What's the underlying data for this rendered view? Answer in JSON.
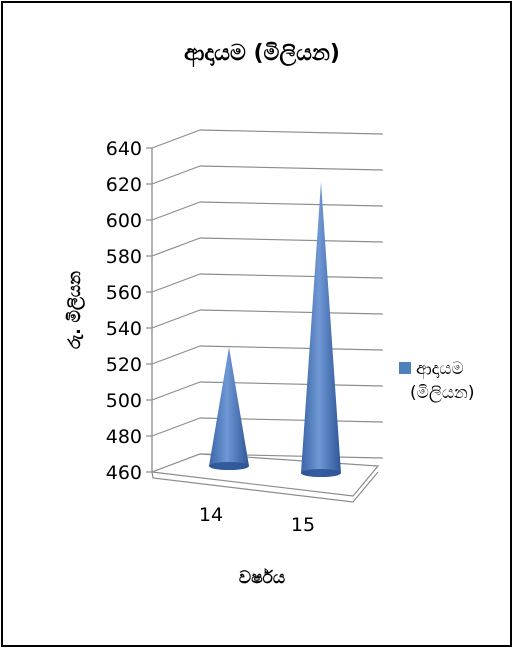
{
  "chart_data": {
    "type": "bar",
    "bar_shape": "cone-3d",
    "title": "ආදායම (මිලියන)",
    "xlabel": "වර්ෂය",
    "ylabel": "රු. මිලියන",
    "categories": [
      "14",
      "15"
    ],
    "series": [
      {
        "name": "ආදායම (මිලියන)",
        "values": [
          527,
          620
        ],
        "color": "#4f81bd"
      }
    ],
    "ylim": [
      460,
      640
    ],
    "yticks": [
      "460",
      "480",
      "500",
      "520",
      "540",
      "560",
      "580",
      "600",
      "620",
      "640"
    ],
    "grid": true,
    "legend": "right"
  }
}
